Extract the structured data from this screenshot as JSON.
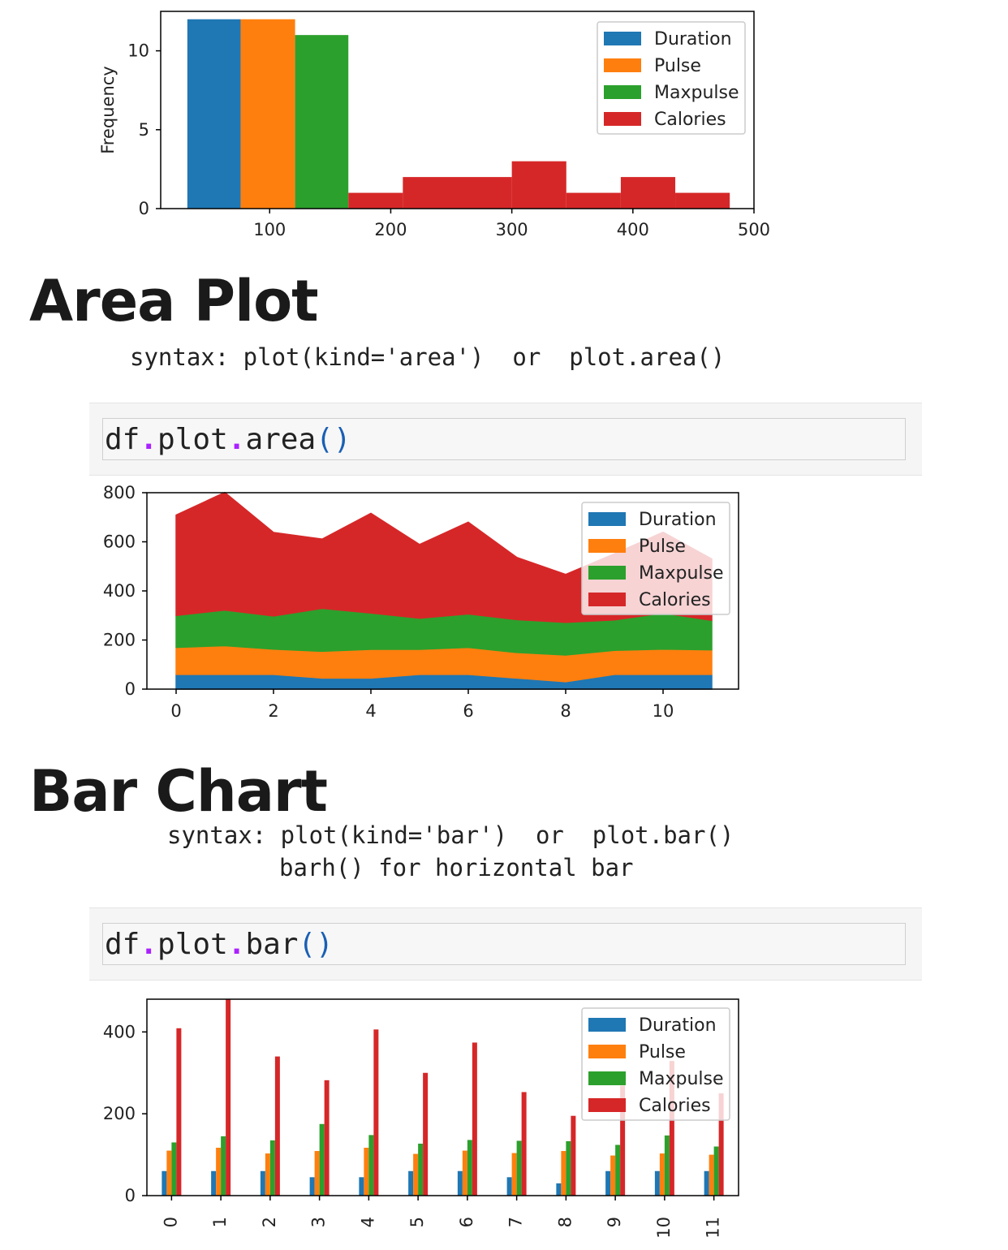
{
  "sections": {
    "area": {
      "heading": "Area Plot",
      "syntax": "syntax: plot(kind='area')  or  plot.area()",
      "code": {
        "obj": "df",
        "dot1": ".",
        "mid": "plot",
        "dot2": ".",
        "method": "area",
        "parens": "()"
      }
    },
    "bar": {
      "heading": "Bar Chart",
      "syntax_line1": "syntax: plot(kind='bar')  or  plot.bar()",
      "syntax_line2": "barh() for horizontal bar",
      "code": {
        "obj": "df",
        "dot1": ".",
        "mid": "plot",
        "dot2": ".",
        "method": "bar",
        "parens": "()"
      }
    }
  },
  "colors": {
    "Duration": "#1f77b4",
    "Pulse": "#ff7f0e",
    "Maxpulse": "#2ca02c",
    "Calories": "#d62728"
  },
  "chart_data": [
    {
      "type": "histogram",
      "ylabel": "Frequency",
      "xlim": [
        10,
        500
      ],
      "ylim": [
        0,
        12.5
      ],
      "xticks": [
        100,
        200,
        300,
        400,
        500
      ],
      "yticks": [
        0,
        5,
        10
      ],
      "legend": {
        "position": "top-right",
        "entries": [
          "Duration",
          "Pulse",
          "Maxpulse",
          "Calories"
        ]
      },
      "bins": [
        {
          "series": "Duration",
          "x0": 32,
          "x1": 76,
          "count": 12
        },
        {
          "series": "Pulse",
          "x0": 76,
          "x1": 121,
          "count": 12
        },
        {
          "series": "Maxpulse",
          "x0": 121,
          "x1": 165,
          "count": 11
        },
        {
          "series": "Calories",
          "x0": 165,
          "x1": 210,
          "count": 1
        },
        {
          "series": "Calories",
          "x0": 210,
          "x1": 255,
          "count": 2
        },
        {
          "series": "Calories",
          "x0": 255,
          "x1": 300,
          "count": 2
        },
        {
          "series": "Calories",
          "x0": 300,
          "x1": 345,
          "count": 3
        },
        {
          "series": "Calories",
          "x0": 345,
          "x1": 390,
          "count": 1
        },
        {
          "series": "Calories",
          "x0": 390,
          "x1": 435,
          "count": 2
        },
        {
          "series": "Calories",
          "x0": 435,
          "x1": 480,
          "count": 1
        }
      ]
    },
    {
      "type": "area",
      "x": [
        0,
        1,
        2,
        3,
        4,
        5,
        6,
        7,
        8,
        9,
        10,
        11
      ],
      "xticks": [
        0,
        2,
        4,
        6,
        8,
        10
      ],
      "yticks": [
        0,
        200,
        400,
        600,
        800
      ],
      "ylim": [
        0,
        800
      ],
      "xlim": [
        -0.6,
        11.55
      ],
      "legend": {
        "position": "top-right",
        "entries": [
          "Duration",
          "Pulse",
          "Maxpulse",
          "Calories"
        ]
      },
      "series": [
        {
          "name": "Duration",
          "values": [
            60,
            60,
            60,
            45,
            45,
            60,
            60,
            45,
            30,
            60,
            60,
            60
          ]
        },
        {
          "name": "Pulse",
          "values": [
            110,
            117,
            103,
            109,
            117,
            102,
            110,
            104,
            109,
            98,
            103,
            100
          ]
        },
        {
          "name": "Maxpulse",
          "values": [
            130,
            145,
            135,
            175,
            148,
            127,
            136,
            134,
            133,
            124,
            147,
            120
          ]
        },
        {
          "name": "Calories",
          "values": [
            409,
            479,
            340,
            282,
            406,
            300,
            374,
            253,
            195,
            269,
            329,
            250
          ]
        }
      ]
    },
    {
      "type": "bar",
      "categories": [
        "0",
        "1",
        "2",
        "3",
        "4",
        "5",
        "6",
        "7",
        "8",
        "9",
        "10",
        "11"
      ],
      "yticks": [
        0,
        200,
        400
      ],
      "ylim": [
        0,
        480
      ],
      "legend": {
        "position": "top-right",
        "entries": [
          "Duration",
          "Pulse",
          "Maxpulse",
          "Calories"
        ]
      },
      "series": [
        {
          "name": "Duration",
          "values": [
            60,
            60,
            60,
            45,
            45,
            60,
            60,
            45,
            30,
            60,
            60,
            60
          ]
        },
        {
          "name": "Pulse",
          "values": [
            110,
            117,
            103,
            109,
            117,
            102,
            110,
            104,
            109,
            98,
            103,
            100
          ]
        },
        {
          "name": "Maxpulse",
          "values": [
            130,
            145,
            135,
            175,
            148,
            127,
            136,
            134,
            133,
            124,
            147,
            120
          ]
        },
        {
          "name": "Calories",
          "values": [
            409,
            479,
            340,
            282,
            406,
            300,
            374,
            253,
            195,
            269,
            329,
            250
          ]
        }
      ]
    }
  ]
}
